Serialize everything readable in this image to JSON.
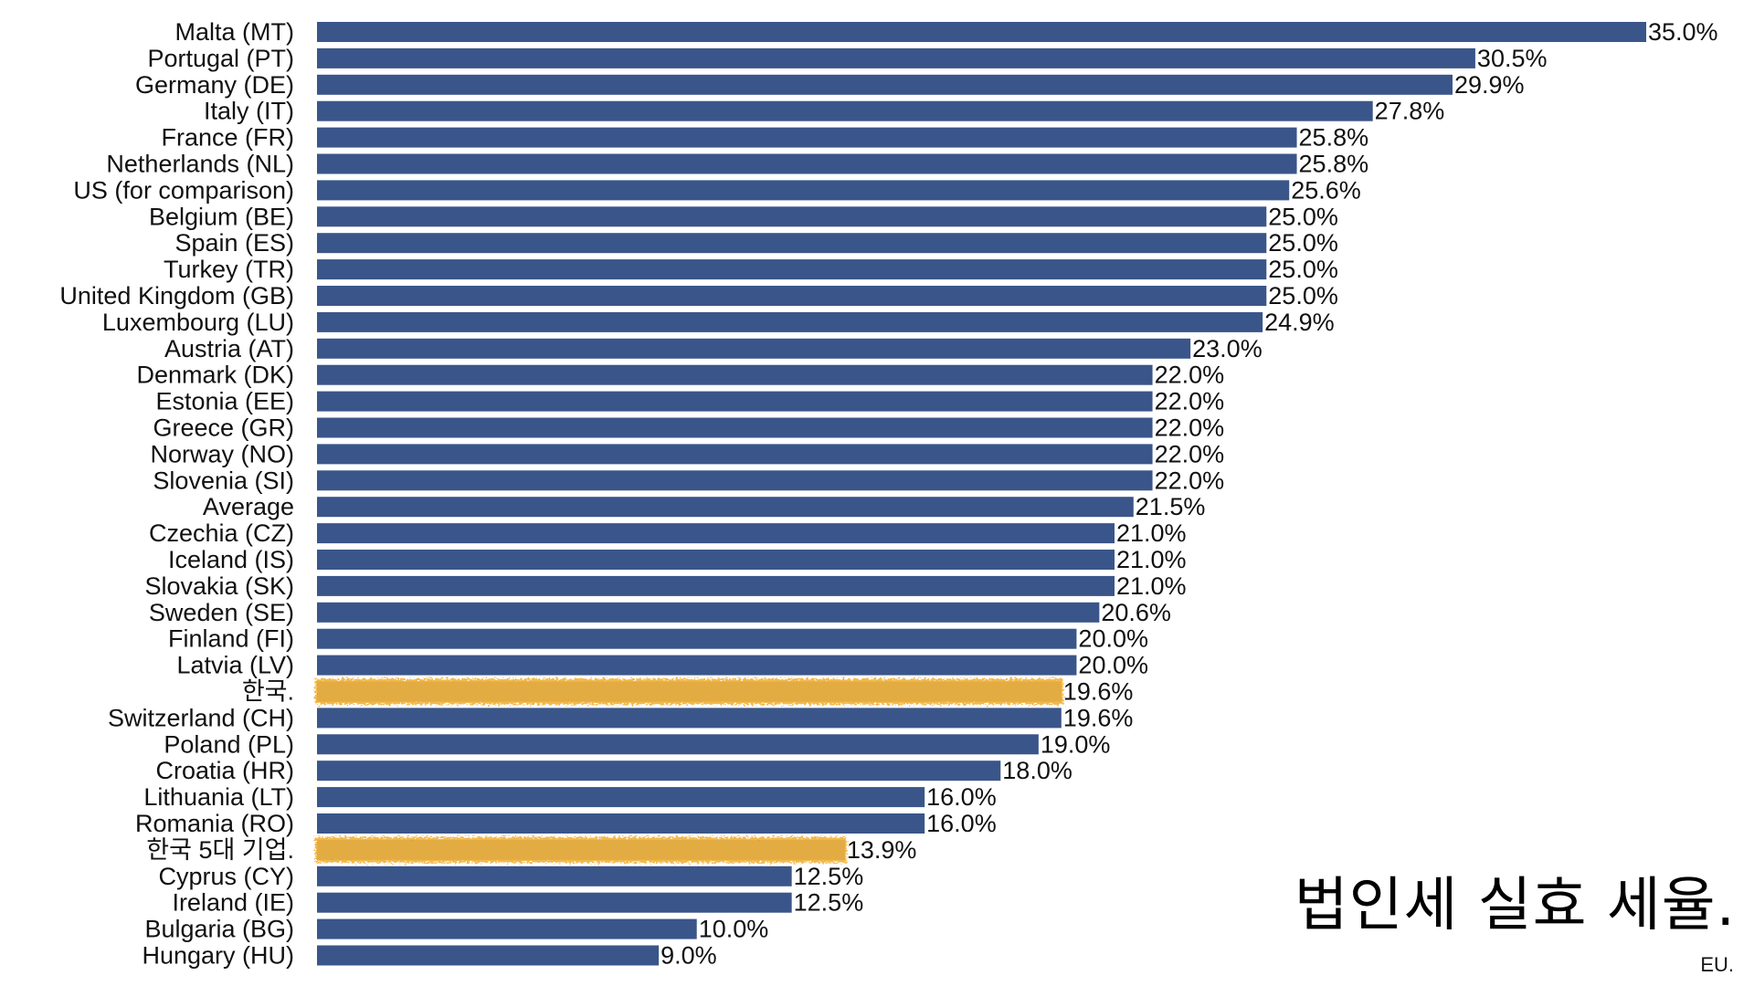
{
  "chart_data": {
    "type": "bar",
    "orientation": "horizontal",
    "categories": [
      "Malta (MT)",
      "Portugal (PT)",
      "Germany (DE)",
      "Italy (IT)",
      "France (FR)",
      "Netherlands (NL)",
      "US (for comparison)",
      "Belgium (BE)",
      "Spain (ES)",
      "Turkey (TR)",
      "United Kingdom (GB)",
      "Luxembourg (LU)",
      "Austria (AT)",
      "Denmark (DK)",
      "Estonia (EE)",
      "Greece (GR)",
      "Norway (NO)",
      "Slovenia (SI)",
      "Average",
      "Czechia (CZ)",
      "Iceland (IS)",
      "Slovakia (SK)",
      "Sweden (SE)",
      "Finland (FI)",
      "Latvia (LV)",
      "한국.",
      "Switzerland (CH)",
      "Poland (PL)",
      "Croatia (HR)",
      "Lithuania (LT)",
      "Romania (RO)",
      "한국 5대 기업.",
      "Cyprus (CY)",
      "Ireland (IE)",
      "Bulgaria (BG)",
      "Hungary (HU)"
    ],
    "values": [
      35.0,
      30.5,
      29.9,
      27.8,
      25.8,
      25.8,
      25.6,
      25.0,
      25.0,
      25.0,
      25.0,
      24.9,
      23.0,
      22.0,
      22.0,
      22.0,
      22.0,
      22.0,
      21.5,
      21.0,
      21.0,
      21.0,
      20.6,
      20.0,
      20.0,
      19.6,
      19.6,
      19.0,
      18.0,
      16.0,
      16.0,
      13.9,
      12.5,
      12.5,
      10.0,
      9.0
    ],
    "value_labels": [
      "35.0%",
      "30.5%",
      "29.9%",
      "27.8%",
      "25.8%",
      "25.8%",
      "25.6%",
      "25.0%",
      "25.0%",
      "25.0%",
      "25.0%",
      "24.9%",
      "23.0%",
      "22.0%",
      "22.0%",
      "22.0%",
      "22.0%",
      "22.0%",
      "21.5%",
      "21.0%",
      "21.0%",
      "21.0%",
      "20.6%",
      "20.0%",
      "20.0%",
      "19.6%",
      "19.6%",
      "19.0%",
      "18.0%",
      "16.0%",
      "16.0%",
      "13.9%",
      "12.5%",
      "12.5%",
      "10.0%",
      "9.0%"
    ],
    "highlighted": [
      "한국.",
      "한국 5대 기업."
    ],
    "title": "법인세 실효 세율.",
    "note": "EU.",
    "xlim": [
      0,
      35.0
    ],
    "grid": false,
    "legend": "none",
    "colors": {
      "bar": "#3a5589",
      "highlight": "#f2b43c"
    }
  }
}
